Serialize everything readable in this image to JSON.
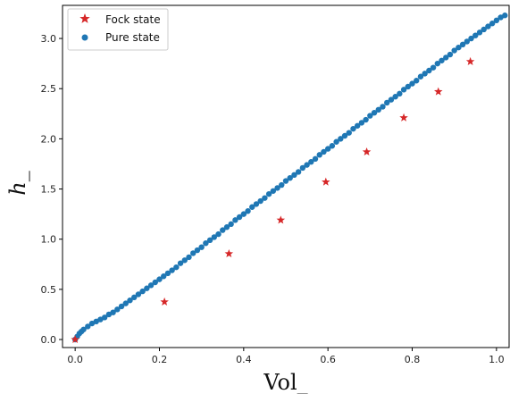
{
  "chart_data": {
    "type": "scatter",
    "title": "",
    "xlabel": "Vol_",
    "ylabel": "h_",
    "xlim": [
      -0.03,
      1.03
    ],
    "ylim": [
      -0.08,
      3.33
    ],
    "xticks": [
      0.0,
      0.2,
      0.4,
      0.6,
      0.8,
      1.0
    ],
    "xtick_labels": [
      "0.0",
      "0.2",
      "0.4",
      "0.6",
      "0.8",
      "1.0"
    ],
    "yticks": [
      0.0,
      0.5,
      1.0,
      1.5,
      2.0,
      2.5,
      3.0
    ],
    "ytick_labels": [
      "0.0",
      "0.5",
      "1.0",
      "1.5",
      "2.0",
      "2.5",
      "3.0"
    ],
    "grid": false,
    "legend": "top-left",
    "series": [
      {
        "name": "Fock state",
        "marker": "star",
        "color": "#d62728",
        "x": [
          0.0,
          0.212,
          0.365,
          0.488,
          0.595,
          0.692,
          0.78,
          0.862,
          0.938
        ],
        "y": [
          0.0,
          0.375,
          0.855,
          1.19,
          1.57,
          1.87,
          2.21,
          2.47,
          2.77
        ]
      },
      {
        "name": "Pure state",
        "marker": "circle",
        "color": "#1f77b4",
        "x": [
          0.0,
          0.005,
          0.01,
          0.015,
          0.02,
          0.03,
          0.04,
          0.05,
          0.06,
          0.07,
          0.08,
          0.09,
          0.1,
          0.11,
          0.12,
          0.13,
          0.14,
          0.15,
          0.16,
          0.17,
          0.18,
          0.19,
          0.2,
          0.21,
          0.22,
          0.23,
          0.24,
          0.25,
          0.26,
          0.27,
          0.28,
          0.29,
          0.3,
          0.31,
          0.32,
          0.33,
          0.34,
          0.35,
          0.36,
          0.37,
          0.38,
          0.39,
          0.4,
          0.41,
          0.42,
          0.43,
          0.44,
          0.45,
          0.46,
          0.47,
          0.48,
          0.49,
          0.5,
          0.51,
          0.52,
          0.53,
          0.54,
          0.55,
          0.56,
          0.57,
          0.58,
          0.59,
          0.6,
          0.61,
          0.62,
          0.63,
          0.64,
          0.65,
          0.66,
          0.67,
          0.68,
          0.69,
          0.7,
          0.71,
          0.72,
          0.73,
          0.74,
          0.75,
          0.76,
          0.77,
          0.78,
          0.79,
          0.8,
          0.81,
          0.82,
          0.83,
          0.84,
          0.85,
          0.86,
          0.87,
          0.88,
          0.89,
          0.9,
          0.91,
          0.92,
          0.93,
          0.94,
          0.95,
          0.96,
          0.97,
          0.98,
          0.99,
          1.0,
          1.01,
          1.02
        ],
        "y": [
          0.0,
          0.03,
          0.06,
          0.08,
          0.1,
          0.13,
          0.16,
          0.18,
          0.2,
          0.22,
          0.25,
          0.27,
          0.3,
          0.33,
          0.36,
          0.39,
          0.42,
          0.45,
          0.48,
          0.51,
          0.54,
          0.57,
          0.6,
          0.63,
          0.66,
          0.69,
          0.72,
          0.76,
          0.79,
          0.82,
          0.86,
          0.89,
          0.92,
          0.96,
          0.99,
          1.02,
          1.05,
          1.09,
          1.12,
          1.15,
          1.19,
          1.22,
          1.25,
          1.28,
          1.32,
          1.35,
          1.38,
          1.41,
          1.45,
          1.48,
          1.51,
          1.54,
          1.58,
          1.61,
          1.64,
          1.67,
          1.71,
          1.74,
          1.77,
          1.8,
          1.84,
          1.87,
          1.9,
          1.93,
          1.97,
          2.0,
          2.03,
          2.06,
          2.1,
          2.13,
          2.16,
          2.19,
          2.23,
          2.26,
          2.29,
          2.32,
          2.36,
          2.39,
          2.42,
          2.45,
          2.49,
          2.52,
          2.55,
          2.58,
          2.62,
          2.65,
          2.68,
          2.71,
          2.75,
          2.78,
          2.81,
          2.84,
          2.88,
          2.91,
          2.94,
          2.97,
          3.0,
          3.03,
          3.06,
          3.09,
          3.12,
          3.15,
          3.18,
          3.21,
          3.23
        ]
      }
    ]
  }
}
